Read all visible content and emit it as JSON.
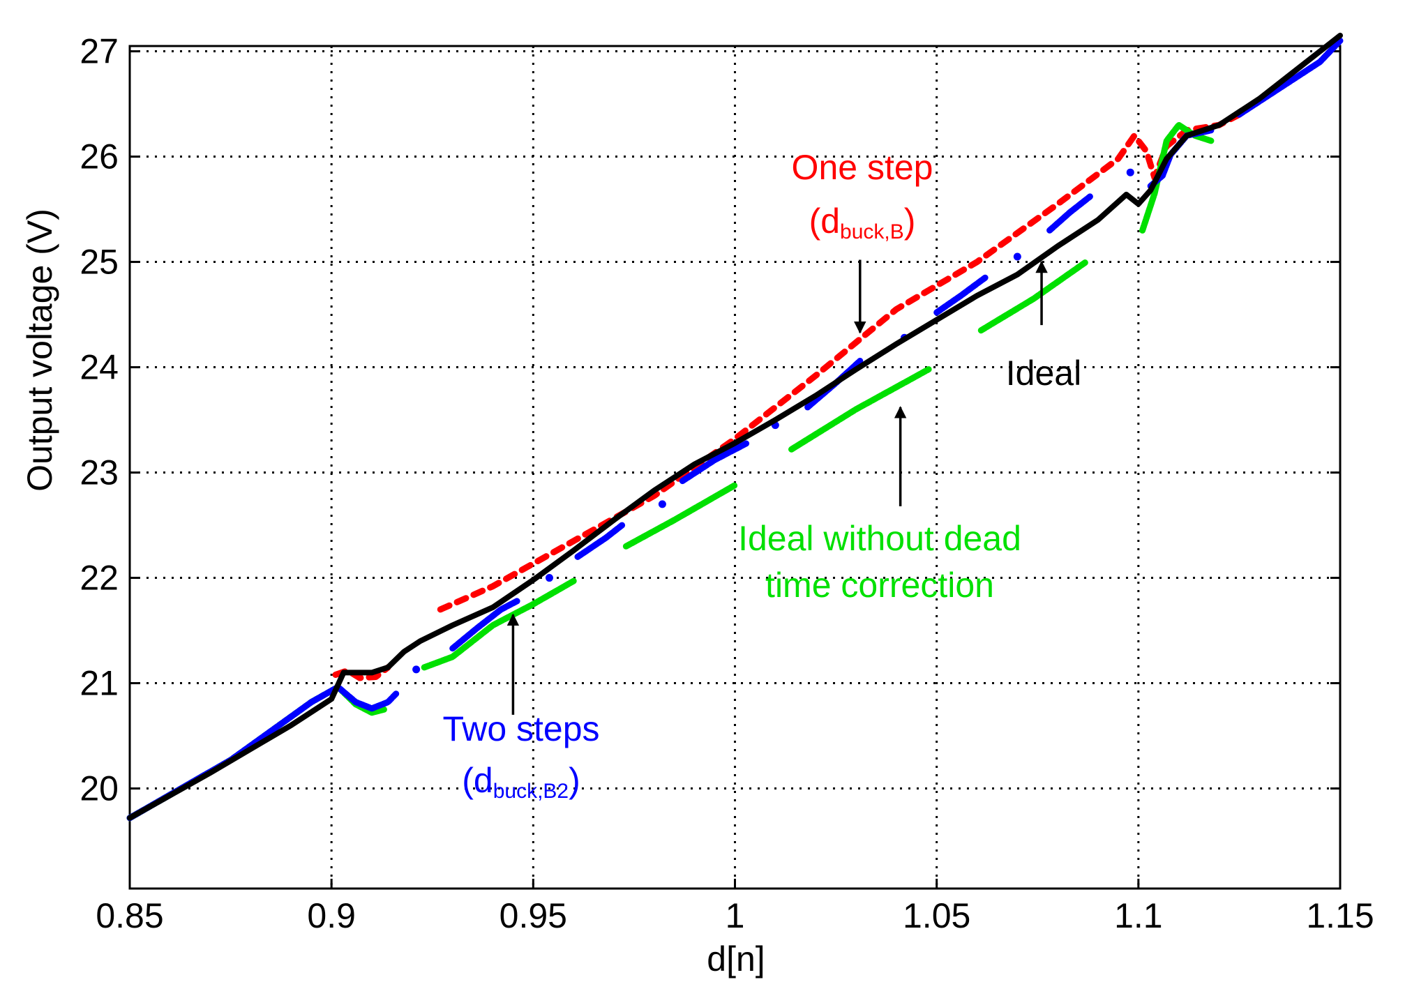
{
  "chart_data": {
    "type": "scatter",
    "title": "",
    "xlabel": "d[n]",
    "ylabel": "Output voltage (V)",
    "xlim": [
      0.85,
      1.15
    ],
    "ylim": [
      19.05,
      27.05
    ],
    "xticks": [
      0.85,
      0.9,
      0.95,
      1,
      1.05,
      1.1,
      1.15
    ],
    "xtick_labels": [
      "0.85",
      "0.9",
      "0.95",
      "1",
      "1.05",
      "1.1",
      "1.15"
    ],
    "yticks": [
      20,
      21,
      22,
      23,
      24,
      25,
      26,
      27
    ],
    "ytick_labels": [
      "20",
      "21",
      "22",
      "23",
      "24",
      "25",
      "26",
      "27"
    ],
    "grid": true,
    "colors": {
      "ideal": "#000000",
      "one_step": "#ff0000",
      "two_steps": "#0000ff",
      "no_deadtime": "#00e000"
    },
    "series": [
      {
        "name": "One step (dbuck,B)",
        "key": "one_step",
        "segments": [
          [
            [
              0.901,
              21.08
            ],
            [
              0.904,
              21.12
            ],
            [
              0.907,
              21.05
            ],
            [
              0.911,
              21.06
            ],
            [
              0.914,
              21.15
            ]
          ],
          [
            [
              0.927,
              21.7
            ],
            [
              0.94,
              21.92
            ],
            [
              0.96,
              22.35
            ],
            [
              0.98,
              22.78
            ],
            [
              1.0,
              23.32
            ],
            [
              1.02,
              23.92
            ],
            [
              1.04,
              24.55
            ],
            [
              1.06,
              25.0
            ],
            [
              1.08,
              25.55
            ],
            [
              1.095,
              25.98
            ],
            [
              1.099,
              26.2
            ],
            [
              1.102,
              26.05
            ],
            [
              1.104,
              25.8
            ],
            [
              1.107,
              26.1
            ],
            [
              1.112,
              26.25
            ],
            [
              1.12,
              26.3
            ],
            [
              1.125,
              26.4
            ]
          ]
        ]
      },
      {
        "name": "Two steps (dbuck,B2)",
        "key": "two_steps",
        "segments": [
          [
            [
              0.85,
              19.72
            ],
            [
              0.875,
              20.27
            ],
            [
              0.895,
              20.82
            ],
            [
              0.901,
              20.95
            ]
          ],
          [
            [
              0.902,
              20.95
            ],
            [
              0.906,
              20.82
            ],
            [
              0.91,
              20.76
            ],
            [
              0.914,
              20.82
            ],
            [
              0.916,
              20.9
            ]
          ],
          [
            [
              0.921,
              21.13
            ]
          ],
          [
            [
              0.93,
              21.33
            ],
            [
              0.936,
              21.52
            ],
            [
              0.942,
              21.7
            ],
            [
              0.946,
              21.78
            ]
          ],
          [
            [
              0.954,
              22.0
            ]
          ],
          [
            [
              0.961,
              22.2
            ],
            [
              0.968,
              22.38
            ],
            [
              0.972,
              22.5
            ]
          ],
          [
            [
              0.982,
              22.7
            ]
          ],
          [
            [
              0.987,
              22.92
            ],
            [
              0.995,
              23.12
            ],
            [
              1.003,
              23.28
            ]
          ],
          [
            [
              1.01,
              23.45
            ]
          ],
          [
            [
              1.018,
              23.62
            ],
            [
              1.025,
              23.85
            ],
            [
              1.031,
              24.06
            ]
          ],
          [
            [
              1.042,
              24.28
            ]
          ],
          [
            [
              1.05,
              24.52
            ],
            [
              1.056,
              24.68
            ],
            [
              1.062,
              24.85
            ]
          ],
          [
            [
              1.07,
              25.05
            ]
          ],
          [
            [
              1.078,
              25.3
            ],
            [
              1.083,
              25.47
            ],
            [
              1.088,
              25.62
            ]
          ],
          [
            [
              1.098,
              25.85
            ]
          ],
          [
            [
              1.103,
              25.72
            ],
            [
              1.106,
              25.82
            ],
            [
              1.108,
              26.02
            ],
            [
              1.112,
              26.2
            ],
            [
              1.118,
              26.25
            ]
          ],
          [
            [
              1.125,
              26.4
            ],
            [
              1.135,
              26.65
            ],
            [
              1.145,
              26.9
            ],
            [
              1.15,
              27.1
            ]
          ]
        ]
      },
      {
        "name": "Ideal without dead time correction",
        "key": "no_deadtime",
        "segments": [
          [
            [
              0.85,
              19.72
            ],
            [
              0.875,
              20.27
            ],
            [
              0.895,
              20.82
            ],
            [
              0.901,
              20.95
            ]
          ],
          [
            [
              0.902,
              20.95
            ],
            [
              0.906,
              20.8
            ],
            [
              0.91,
              20.72
            ],
            [
              0.913,
              20.75
            ]
          ],
          [
            [
              0.923,
              21.15
            ],
            [
              0.93,
              21.25
            ],
            [
              0.94,
              21.55
            ],
            [
              0.95,
              21.75
            ],
            [
              0.96,
              21.97
            ]
          ],
          [
            [
              0.973,
              22.3
            ],
            [
              0.985,
              22.55
            ],
            [
              1.0,
              22.88
            ]
          ],
          [
            [
              1.014,
              23.22
            ],
            [
              1.03,
              23.6
            ],
            [
              1.048,
              23.98
            ]
          ],
          [
            [
              1.061,
              24.35
            ],
            [
              1.074,
              24.65
            ],
            [
              1.087,
              25.0
            ]
          ],
          [
            [
              1.101,
              25.3
            ],
            [
              1.104,
              25.65
            ],
            [
              1.107,
              26.15
            ],
            [
              1.11,
              26.3
            ],
            [
              1.114,
              26.2
            ],
            [
              1.118,
              26.15
            ]
          ]
        ]
      },
      {
        "name": "Ideal",
        "key": "ideal",
        "segments": [
          [
            [
              0.85,
              19.72
            ],
            [
              0.87,
              20.15
            ],
            [
              0.89,
              20.6
            ],
            [
              0.9,
              20.85
            ],
            [
              0.903,
              21.1
            ],
            [
              0.91,
              21.1
            ],
            [
              0.914,
              21.15
            ],
            [
              0.918,
              21.3
            ],
            [
              0.922,
              21.4
            ],
            [
              0.93,
              21.55
            ],
            [
              0.94,
              21.72
            ],
            [
              0.95,
              21.98
            ],
            [
              0.96,
              22.26
            ],
            [
              0.97,
              22.55
            ],
            [
              0.98,
              22.83
            ],
            [
              0.99,
              23.08
            ],
            [
              1.0,
              23.28
            ],
            [
              1.01,
              23.5
            ],
            [
              1.02,
              23.73
            ],
            [
              1.03,
              23.98
            ],
            [
              1.04,
              24.22
            ],
            [
              1.05,
              24.45
            ],
            [
              1.06,
              24.68
            ],
            [
              1.07,
              24.88
            ],
            [
              1.08,
              25.15
            ],
            [
              1.09,
              25.4
            ],
            [
              1.097,
              25.64
            ],
            [
              1.1,
              25.55
            ],
            [
              1.103,
              25.68
            ],
            [
              1.107,
              25.98
            ],
            [
              1.112,
              26.2
            ],
            [
              1.12,
              26.3
            ],
            [
              1.13,
              26.55
            ],
            [
              1.14,
              26.85
            ],
            [
              1.15,
              27.15
            ]
          ]
        ]
      }
    ],
    "annotations": [
      {
        "key": "one_step",
        "main": "One step",
        "line2_pre": "(d",
        "line2_sub": "buck,B",
        "line2_post": ")",
        "color": "#ff0000",
        "arrow_from": [
          1.031,
          25.02
        ],
        "arrow_to": [
          1.031,
          24.33
        ]
      },
      {
        "key": "ideal",
        "main": "Ideal",
        "color": "#000000",
        "arrow_from": [
          1.076,
          24.4
        ],
        "arrow_to": [
          1.076,
          25.0
        ]
      },
      {
        "key": "no_deadtime",
        "line1": "Ideal without dead",
        "line2": "time correction",
        "color": "#00e000",
        "arrow_from": [
          1.041,
          22.68
        ],
        "arrow_to": [
          1.041,
          23.62
        ]
      },
      {
        "key": "two_steps",
        "main": "Two steps",
        "line2_pre": "(d",
        "line2_sub": "buck,B2",
        "line2_post": ")",
        "color": "#0000ff",
        "arrow_from": [
          0.945,
          20.7
        ],
        "arrow_to": [
          0.945,
          21.65
        ]
      }
    ]
  }
}
